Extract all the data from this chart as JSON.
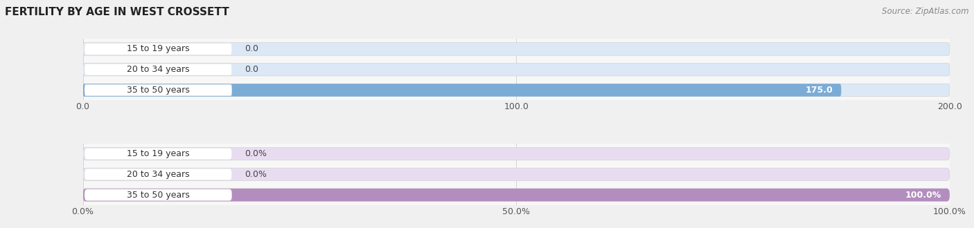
{
  "title": "FERTILITY BY AGE IN WEST CROSSETT",
  "source": "Source: ZipAtlas.com",
  "top_chart": {
    "categories": [
      "15 to 19 years",
      "20 to 34 years",
      "35 to 50 years"
    ],
    "values": [
      0.0,
      0.0,
      175.0
    ],
    "xlim": [
      0,
      200
    ],
    "xticks": [
      0.0,
      100.0,
      200.0
    ],
    "bar_color": "#7bacd6",
    "bar_bg_color": "#dce8f5",
    "label_bg_color": "#ffffff",
    "bar_height": 0.62
  },
  "bottom_chart": {
    "categories": [
      "15 to 19 years",
      "20 to 34 years",
      "35 to 50 years"
    ],
    "values": [
      0.0,
      0.0,
      100.0
    ],
    "xlim": [
      0,
      100
    ],
    "xticks": [
      0.0,
      50.0,
      100.0
    ],
    "xtick_labels": [
      "0.0%",
      "50.0%",
      "100.0%"
    ],
    "bar_color": "#b48dbf",
    "bar_bg_color": "#e8ddf0",
    "label_bg_color": "#ffffff",
    "bar_height": 0.62
  },
  "title_fontsize": 11,
  "source_fontsize": 8.5,
  "label_fontsize": 9,
  "value_fontsize": 9,
  "tick_fontsize": 9,
  "fig_bg_color": "#f0f0f0",
  "chart_bg_color": "#f7f7f7"
}
